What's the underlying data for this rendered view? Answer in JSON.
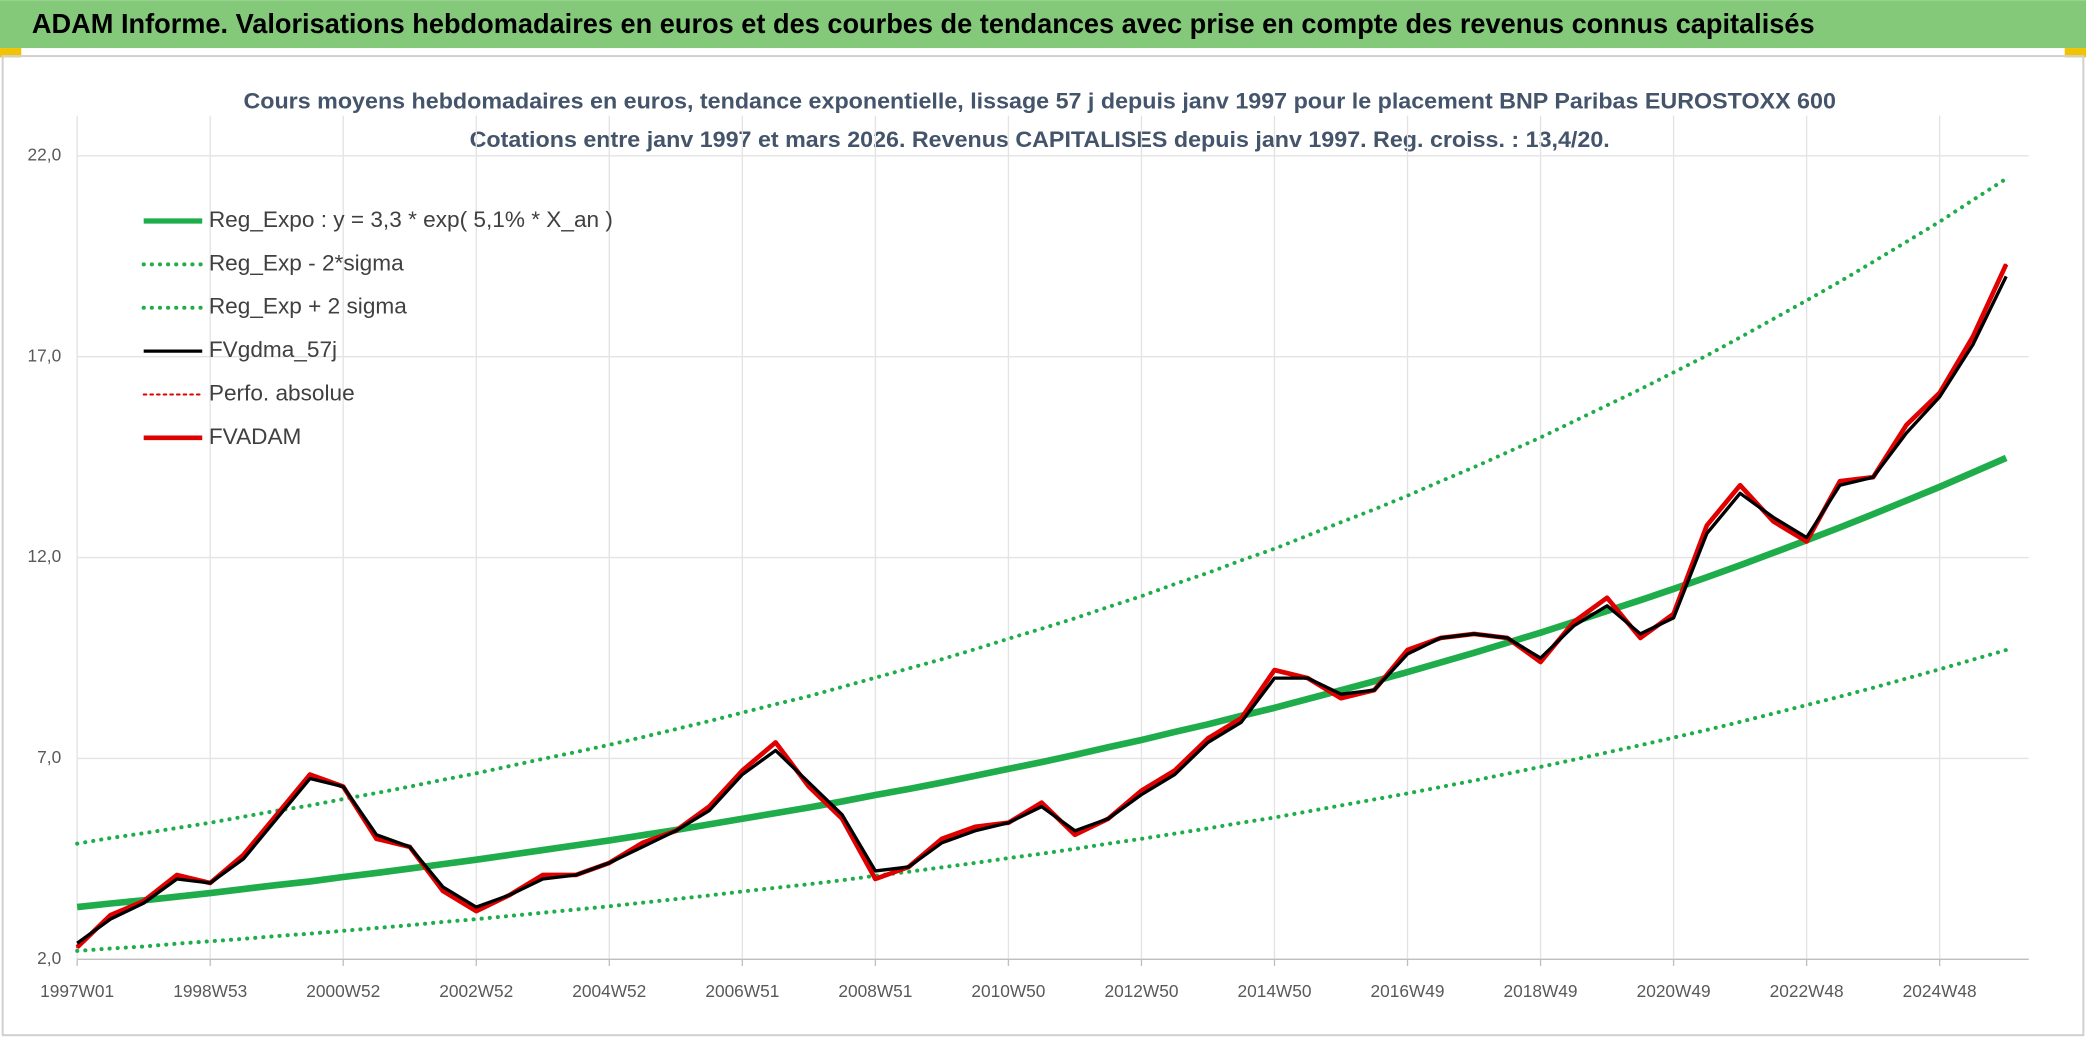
{
  "chart_data": {
    "type": "line",
    "title": "ADAM Informe. Valorisations hebdomadaires en euros et des courbes de tendances avec prise en compte des revenus connus capitalisés",
    "subtitle": [
      "Cours moyens hebdomadaires en euros, tendance exponentielle, lissage 57 j depuis janv 1997 pour le placement BNP Paribas EUROSTOXX 600",
      "Cotations entre janv 1997 et mars 2026. Revenus CAPITALISES depuis janv 1997. Reg. croiss. : 13,4/20."
    ],
    "categories": [
      "1997W01",
      null,
      null,
      null,
      "1998W53",
      null,
      null,
      null,
      "2000W52",
      null,
      null,
      null,
      "2002W52",
      null,
      null,
      null,
      "2004W52",
      null,
      null,
      null,
      "2006W51",
      null,
      null,
      null,
      "2008W51",
      null,
      null,
      null,
      "2010W50",
      null,
      null,
      null,
      "2012W50",
      null,
      null,
      null,
      "2014W50",
      null,
      null,
      null,
      "2016W49",
      null,
      null,
      null,
      "2018W49",
      null,
      null,
      null,
      "2020W49",
      null,
      null,
      null,
      "2022W48",
      null,
      null,
      null,
      "2024W48",
      null,
      null
    ],
    "ylim": [
      2,
      23
    ],
    "yticks": [
      {
        "value": 2,
        "label": "2,0"
      },
      {
        "value": 7,
        "label": "7,0"
      },
      {
        "value": 12,
        "label": "12,0"
      },
      {
        "value": 17,
        "label": "17,0"
      },
      {
        "value": 22,
        "label": "22,0"
      }
    ],
    "grid": true,
    "legend": "top-left",
    "series": [
      {
        "name": "Reg_Expo : y = 3,3 * exp( 5,1% *  X_an )",
        "color": "#1fad4b",
        "line_style": "solid",
        "values": [
          3.3,
          3.39,
          3.47,
          3.56,
          3.65,
          3.75,
          3.85,
          3.94,
          4.05,
          4.15,
          4.26,
          4.37,
          4.48,
          4.6,
          4.72,
          4.84,
          4.96,
          5.09,
          5.22,
          5.36,
          5.5,
          5.64,
          5.78,
          5.93,
          6.09,
          6.24,
          6.4,
          6.57,
          6.74,
          6.91,
          7.09,
          7.28,
          7.46,
          7.66,
          7.85,
          8.06,
          8.26,
          8.48,
          8.7,
          8.92,
          9.15,
          9.39,
          9.63,
          9.88,
          10.13,
          10.4,
          10.67,
          10.94,
          11.22,
          11.51,
          11.81,
          12.12,
          12.43,
          12.75,
          13.08,
          13.42,
          13.76,
          14.12,
          14.48
        ]
      },
      {
        "name": "Reg_Exp - 2*sigma",
        "color": "#1fad4b",
        "line_style": "dotted",
        "values": [
          2.21,
          2.27,
          2.32,
          2.39,
          2.45,
          2.51,
          2.58,
          2.64,
          2.71,
          2.78,
          2.85,
          2.93,
          3.0,
          3.08,
          3.16,
          3.24,
          3.32,
          3.41,
          3.5,
          3.59,
          3.69,
          3.78,
          3.87,
          3.97,
          4.08,
          4.18,
          4.29,
          4.4,
          4.52,
          4.63,
          4.75,
          4.88,
          5.0,
          5.13,
          5.26,
          5.4,
          5.53,
          5.68,
          5.83,
          5.98,
          6.13,
          6.29,
          6.45,
          6.62,
          6.79,
          6.97,
          7.15,
          7.33,
          7.52,
          7.71,
          7.91,
          8.12,
          8.33,
          8.54,
          8.76,
          8.99,
          9.22,
          9.46,
          9.7
        ]
      },
      {
        "name": "Reg_Exp + 2 sigma",
        "color": "#1fad4b",
        "line_style": "dotted",
        "values": [
          4.88,
          5.02,
          5.14,
          5.27,
          5.4,
          5.55,
          5.7,
          5.83,
          5.99,
          6.14,
          6.3,
          6.47,
          6.63,
          6.81,
          6.99,
          7.16,
          7.34,
          7.53,
          7.73,
          7.93,
          8.14,
          8.35,
          8.55,
          8.78,
          9.01,
          9.24,
          9.47,
          9.72,
          9.98,
          10.23,
          10.49,
          10.77,
          11.04,
          11.34,
          11.62,
          11.93,
          12.22,
          12.55,
          12.88,
          13.2,
          13.54,
          13.9,
          14.25,
          14.62,
          14.99,
          15.39,
          15.79,
          16.19,
          16.61,
          17.03,
          17.48,
          17.94,
          18.4,
          18.87,
          19.36,
          19.86,
          20.36,
          20.9,
          21.43
        ]
      },
      {
        "name": "FVgdma_57j",
        "color": "#000000",
        "line_style": "solid",
        "values": [
          2.4,
          3.0,
          3.4,
          4.0,
          3.9,
          4.5,
          5.5,
          6.5,
          6.3,
          5.1,
          4.8,
          3.8,
          3.3,
          3.6,
          4.0,
          4.1,
          4.4,
          4.8,
          5.2,
          5.7,
          6.6,
          7.2,
          6.4,
          5.6,
          4.2,
          4.3,
          4.9,
          5.2,
          5.4,
          5.8,
          5.2,
          5.5,
          6.1,
          6.6,
          7.4,
          7.9,
          9.0,
          9.0,
          8.6,
          8.7,
          9.6,
          10.0,
          10.1,
          10.0,
          9.5,
          10.3,
          10.8,
          10.1,
          10.5,
          12.6,
          13.6,
          13.0,
          12.5,
          13.8,
          14.0,
          15.1,
          16.0,
          17.3,
          19.0
        ]
      },
      {
        "name": "Perfo. absolue",
        "color": "#e00000",
        "line_style": "dotted",
        "values": [
          2.3,
          3.1,
          3.45,
          4.1,
          3.9,
          4.6,
          5.6,
          6.6,
          6.3,
          5.0,
          4.8,
          3.7,
          3.2,
          3.6,
          4.1,
          4.1,
          4.4,
          4.9,
          5.2,
          5.8,
          6.7,
          7.4,
          6.3,
          5.5,
          4.0,
          4.3,
          5.0,
          5.3,
          5.4,
          5.9,
          5.1,
          5.5,
          6.2,
          6.7,
          7.5,
          8.0,
          9.2,
          9.0,
          8.5,
          8.7,
          9.7,
          10.0,
          10.1,
          10.0,
          9.4,
          10.4,
          11.0,
          10.0,
          10.6,
          12.8,
          13.8,
          12.9,
          12.4,
          13.9,
          14.0,
          15.3,
          16.1,
          17.5,
          19.3
        ]
      },
      {
        "name": "FVADAM",
        "color": "#e00000",
        "line_style": "solid",
        "values": [
          2.3,
          3.1,
          3.45,
          4.1,
          3.9,
          4.6,
          5.6,
          6.6,
          6.3,
          5.0,
          4.8,
          3.7,
          3.2,
          3.6,
          4.1,
          4.1,
          4.4,
          4.9,
          5.2,
          5.8,
          6.7,
          7.4,
          6.3,
          5.5,
          4.0,
          4.3,
          5.0,
          5.3,
          5.4,
          5.9,
          5.1,
          5.5,
          6.2,
          6.7,
          7.5,
          8.0,
          9.2,
          9.0,
          8.5,
          8.7,
          9.7,
          10.0,
          10.1,
          10.0,
          9.4,
          10.4,
          11.0,
          10.0,
          10.6,
          12.8,
          13.8,
          12.9,
          12.4,
          13.9,
          14.0,
          15.3,
          16.1,
          17.5,
          19.3
        ]
      }
    ]
  }
}
